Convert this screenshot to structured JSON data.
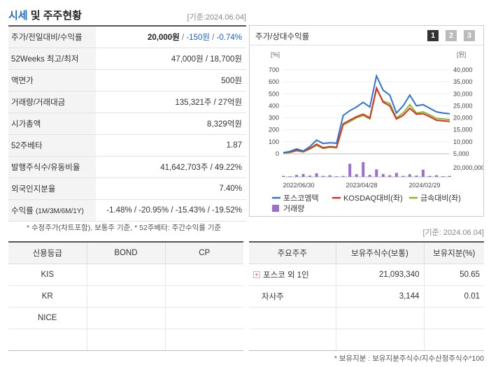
{
  "header": {
    "title_a": "시세",
    "title_b": " 및 주주현황",
    "date": "[기준:2024.06.04]"
  },
  "quote": {
    "rows": [
      {
        "label": "주가/전일대비/수익률"
      },
      {
        "label": "52Weeks 최고/최저",
        "value": "47,000원 / 18,700원"
      },
      {
        "label": "액면가",
        "value": "500원"
      },
      {
        "label": "거래량/거래대금",
        "value": "135,321주 / 27억원"
      },
      {
        "label": "시가총액",
        "value": "8,329억원"
      },
      {
        "label": "52주베타",
        "value": "1.87"
      },
      {
        "label": "발행주식수/유동비율",
        "value": "41,642,703주 / 49.22%"
      },
      {
        "label": "외국인지분율",
        "value": "7.40%"
      },
      {
        "label": "수익률",
        "sub": "(1M/3M/6M/1Y)"
      }
    ],
    "price": "20,000원",
    "change": "-150원",
    "rate": "-0.74%",
    "returns": [
      "-1.48%",
      "-20.95%",
      "-15.43%",
      "-19.52%"
    ],
    "footnote": "* 수정주가(차트포함), 보통주 기준, * 52주베타: 주간수익률 기준"
  },
  "chart": {
    "title": "주가/상대수익률",
    "pages": [
      "1",
      "2",
      "3"
    ],
    "left_unit": "[%]",
    "right_unit": "[원]",
    "volume_unit": "20,000,000",
    "colors": {
      "stock": "#2f73d8",
      "kosdaq": "#d93025",
      "metal": "#8ab82d",
      "volume": "#9b6fd0"
    },
    "legend": {
      "stock": "포스코엠텍",
      "kosdaq": "KOSDAQ대비(좌)",
      "metal": "금속대비(좌)",
      "volume": "거래량"
    }
  },
  "chart_data": {
    "type": "line",
    "x_ticks": [
      "2022/06/30",
      "2023/04/28",
      "2024/02/29"
    ],
    "y_left_ticks": [
      "700",
      "600",
      "500",
      "400",
      "300",
      "200",
      "100",
      "0"
    ],
    "y_right_ticks": [
      "40,000",
      "35,000",
      "30,000",
      "25,000",
      "20,000",
      "15,000",
      "10,000",
      "5,000"
    ],
    "ylim_left": [
      0,
      700
    ],
    "ylim_right": [
      5000,
      40000
    ],
    "series": [
      {
        "name": "포스코엠텍",
        "axis": "right",
        "values": [
          5400,
          6000,
          7000,
          6200,
          8000,
          10700,
          9300,
          9600,
          9400,
          21000,
          23000,
          24500,
          26500,
          24500,
          37500,
          31500,
          29500,
          22000,
          25000,
          29500,
          25000,
          25500,
          24000,
          22500,
          22000,
          21700
        ]
      },
      {
        "name": "KOSDAQ대비(좌)",
        "axis": "left",
        "values": [
          10,
          15,
          30,
          20,
          45,
          80,
          50,
          60,
          55,
          250,
          280,
          310,
          330,
          300,
          550,
          430,
          400,
          290,
          320,
          380,
          330,
          335,
          310,
          280,
          275,
          270
        ]
      },
      {
        "name": "금속대비(좌)",
        "axis": "left",
        "values": [
          5,
          10,
          25,
          15,
          40,
          70,
          45,
          55,
          50,
          240,
          270,
          300,
          320,
          290,
          540,
          440,
          420,
          300,
          340,
          410,
          340,
          350,
          325,
          295,
          290,
          285
        ]
      }
    ],
    "volume": [
      0.3,
      0.2,
      0.6,
      0.9,
      0.4,
      1.1,
      0.3,
      0.5,
      0.2,
      0.3,
      4.0,
      0.8,
      4.5,
      0.6,
      2.3,
      0.9,
      0.5,
      1.2,
      0.3,
      0.8,
      0.4,
      2.2,
      0.3,
      0.5,
      0.2,
      0.3
    ]
  },
  "date2": "[기준: 2024.06.04]",
  "credit": {
    "headers": [
      "신용등급",
      "BOND",
      "CP"
    ],
    "rows": [
      [
        "KIS",
        "",
        ""
      ],
      [
        "KR",
        "",
        ""
      ],
      [
        "NICE",
        "",
        ""
      ],
      [
        "",
        "",
        ""
      ]
    ]
  },
  "holders": {
    "headers": [
      "주요주주",
      "보유주식수(보통)",
      "보유지분(%)"
    ],
    "rows": [
      {
        "name": "포스코 외 1인",
        "shares": "21,093,340",
        "pct": "50.65",
        "expand": true
      },
      {
        "name": "자사주",
        "shares": "3,144",
        "pct": "0.01",
        "expand": false
      }
    ],
    "footnote": "* 보유지분 : 보유지분주식수/지수산정주식수*100"
  }
}
